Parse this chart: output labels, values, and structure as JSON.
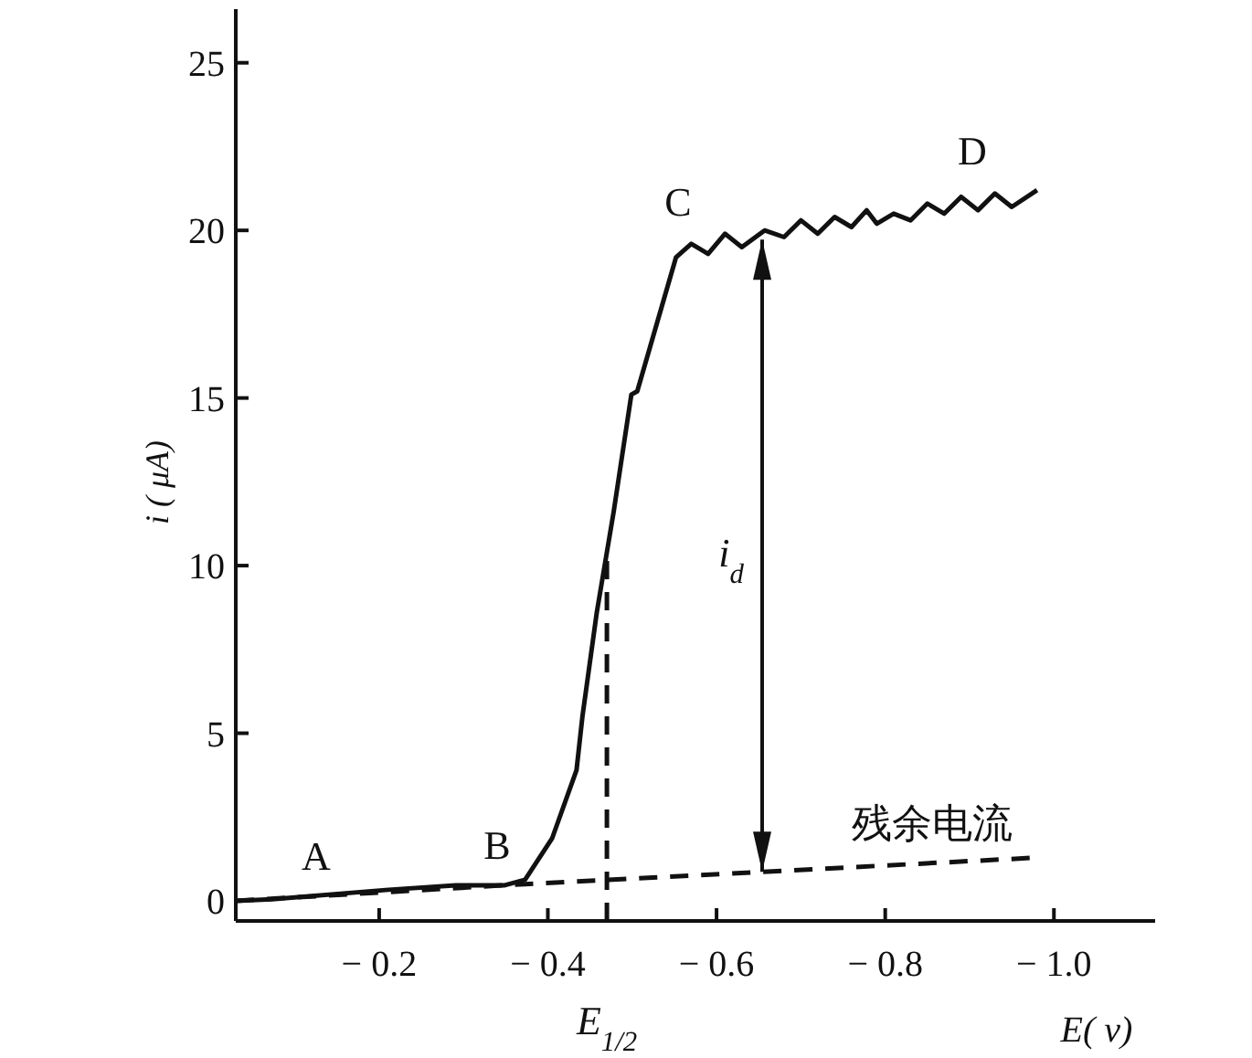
{
  "chart_data": {
    "type": "line",
    "xlabel": "E( v)",
    "ylabel": "i ( μA)",
    "xlim": [
      -0.03,
      -1.12
    ],
    "ylim": [
      -0.6,
      26.6
    ],
    "xticks": [
      {
        "value": -0.2,
        "label": "− 0.2"
      },
      {
        "value": -0.4,
        "label": "− 0.4"
      },
      {
        "value": -0.6,
        "label": "− 0.6"
      },
      {
        "value": -0.8,
        "label": "− 0.8"
      },
      {
        "value": -1.0,
        "label": "− 1.0"
      }
    ],
    "yticks": [
      0,
      5,
      10,
      15,
      20,
      25
    ],
    "grid": false,
    "series": [
      {
        "color": "#111111",
        "line_style": "solid",
        "x": [
          -0.03,
          -0.073,
          -0.211,
          -0.291,
          -0.348,
          -0.373,
          -0.405,
          -0.434,
          -0.441,
          -0.458,
          -0.47,
          -0.478,
          -0.499,
          -0.506,
          -0.552,
          -0.57,
          -0.59,
          -0.61,
          -0.63,
          -0.657,
          -0.68,
          -0.7,
          -0.72,
          -0.74,
          -0.76,
          -0.778,
          -0.79,
          -0.81,
          -0.83,
          -0.85,
          -0.87,
          -0.89,
          -0.91,
          -0.93,
          -0.95,
          -0.98
        ],
        "values": [
          0,
          0.05,
          0.33,
          0.46,
          0.46,
          0.63,
          1.86,
          3.9,
          5.5,
          8.6,
          10.4,
          11.6,
          15.1,
          15.2,
          19.2,
          19.6,
          19.3,
          19.9,
          19.5,
          20.0,
          19.8,
          20.3,
          19.9,
          20.4,
          20.1,
          20.6,
          20.2,
          20.5,
          20.3,
          20.8,
          20.5,
          21.0,
          20.6,
          21.1,
          20.7,
          21.2
        ]
      },
      {
        "color": "#111111",
        "line_style": "dashed",
        "x": [
          -0.03,
          -0.373,
          -0.973
        ],
        "values": [
          0,
          0.5,
          1.28
        ]
      },
      {
        "color": "#111111",
        "line_style": "dashed",
        "x": [
          -0.47,
          -0.47
        ],
        "values": [
          -0.6,
          10.4
        ]
      }
    ],
    "annotations": [
      "A",
      "B",
      "C",
      "D",
      "i$_{d}$",
      "残余电流",
      {
        "text": "E$_{1/2}$",
        "x": -0.47,
        "y": -0.6
      }
    ]
  }
}
